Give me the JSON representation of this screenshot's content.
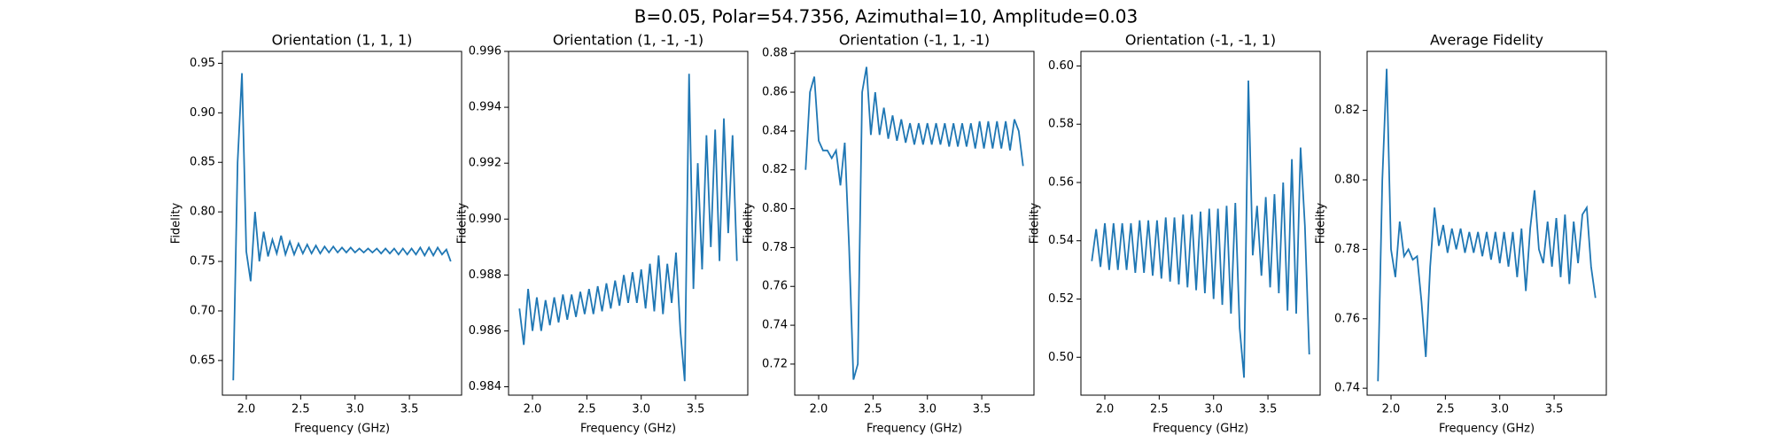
{
  "title": "B=0.05, Polar=54.7356, Azimuthal=10, Amplitude=0.03",
  "chart_data": [
    {
      "type": "line",
      "title": "Orientation (1, 1, 1)",
      "x_label": "Frequency (GHz)",
      "y_label": "Fidelity",
      "x": [
        1.88,
        1.92,
        1.96,
        2.0,
        2.04,
        2.08,
        2.12,
        2.16,
        2.2,
        2.24,
        2.28,
        2.32,
        2.36,
        2.4,
        2.44,
        2.48,
        2.52,
        2.56,
        2.6,
        2.64,
        2.68,
        2.72,
        2.76,
        2.8,
        2.84,
        2.88,
        2.92,
        2.96,
        3.0,
        3.04,
        3.08,
        3.12,
        3.16,
        3.2,
        3.24,
        3.28,
        3.32,
        3.36,
        3.4,
        3.44,
        3.48,
        3.52,
        3.56,
        3.6,
        3.64,
        3.68,
        3.72,
        3.76,
        3.8,
        3.84,
        3.88
      ],
      "values": [
        0.63,
        0.85,
        0.94,
        0.76,
        0.73,
        0.8,
        0.75,
        0.78,
        0.755,
        0.772,
        0.758,
        0.776,
        0.757,
        0.77,
        0.757,
        0.768,
        0.758,
        0.767,
        0.758,
        0.766,
        0.758,
        0.765,
        0.759,
        0.765,
        0.759,
        0.764,
        0.759,
        0.764,
        0.759,
        0.763,
        0.759,
        0.763,
        0.759,
        0.763,
        0.758,
        0.763,
        0.758,
        0.763,
        0.757,
        0.763,
        0.757,
        0.763,
        0.757,
        0.764,
        0.756,
        0.764,
        0.756,
        0.764,
        0.757,
        0.762,
        0.75
      ],
      "color": "#1f77b4",
      "xlim": [
        1.78,
        3.98
      ],
      "xticks": [
        {
          "value": 2,
          "label": "2.0"
        },
        2.5,
        {
          "value": 3,
          "label": "3.0"
        },
        3.5
      ],
      "ylim": [
        0.615,
        0.962
      ],
      "yticks": [
        0.65,
        {
          "value": 0.7,
          "label": "0.70"
        },
        0.75,
        {
          "value": 0.8,
          "label": "0.80"
        },
        0.85,
        {
          "value": 0.9,
          "label": "0.90"
        },
        0.95
      ]
    },
    {
      "type": "line",
      "title": "Orientation (1, -1, -1)",
      "x_label": "Frequency (GHz)",
      "y_label": "Fidelity",
      "x": [
        1.88,
        1.92,
        1.96,
        2.0,
        2.04,
        2.08,
        2.12,
        2.16,
        2.2,
        2.24,
        2.28,
        2.32,
        2.36,
        2.4,
        2.44,
        2.48,
        2.52,
        2.56,
        2.6,
        2.64,
        2.68,
        2.72,
        2.76,
        2.8,
        2.84,
        2.88,
        2.92,
        2.96,
        3.0,
        3.04,
        3.08,
        3.12,
        3.16,
        3.2,
        3.24,
        3.28,
        3.32,
        3.36,
        3.4,
        3.44,
        3.48,
        3.52,
        3.56,
        3.6,
        3.64,
        3.68,
        3.72,
        3.76,
        3.8,
        3.84,
        3.88
      ],
      "values": [
        0.9868,
        0.9855,
        0.9875,
        0.986,
        0.9872,
        0.986,
        0.9871,
        0.9862,
        0.9872,
        0.9863,
        0.9873,
        0.9864,
        0.9873,
        0.9865,
        0.9874,
        0.9866,
        0.9875,
        0.9866,
        0.9876,
        0.9867,
        0.9877,
        0.9868,
        0.9878,
        0.9869,
        0.988,
        0.987,
        0.9881,
        0.987,
        0.9882,
        0.9868,
        0.9884,
        0.9867,
        0.9887,
        0.9866,
        0.9884,
        0.987,
        0.9888,
        0.986,
        0.9842,
        0.9952,
        0.9875,
        0.992,
        0.9882,
        0.993,
        0.989,
        0.9932,
        0.9885,
        0.9936,
        0.9895,
        0.993,
        0.9885
      ],
      "color": "#1f77b4",
      "xlim": [
        1.78,
        3.98
      ],
      "xticks": [
        {
          "value": 2,
          "label": "2.0"
        },
        2.5,
        {
          "value": 3,
          "label": "3.0"
        },
        3.5
      ],
      "ylim": [
        0.9837,
        0.996
      ],
      "yticks": [
        0.984,
        0.986,
        0.988,
        {
          "value": 0.99,
          "label": "0.990"
        },
        0.992,
        0.994,
        0.996
      ]
    },
    {
      "type": "line",
      "title": "Orientation (-1, 1, -1)",
      "x_label": "Frequency (GHz)",
      "y_label": "Fidelity",
      "x": [
        1.88,
        1.92,
        1.96,
        2.0,
        2.04,
        2.08,
        2.12,
        2.16,
        2.2,
        2.24,
        2.28,
        2.32,
        2.36,
        2.4,
        2.44,
        2.48,
        2.52,
        2.56,
        2.6,
        2.64,
        2.68,
        2.72,
        2.76,
        2.8,
        2.84,
        2.88,
        2.92,
        2.96,
        3.0,
        3.04,
        3.08,
        3.12,
        3.16,
        3.2,
        3.24,
        3.28,
        3.32,
        3.36,
        3.4,
        3.44,
        3.48,
        3.52,
        3.56,
        3.6,
        3.64,
        3.68,
        3.72,
        3.76,
        3.8,
        3.84,
        3.88
      ],
      "values": [
        0.82,
        0.86,
        0.868,
        0.835,
        0.83,
        0.83,
        0.826,
        0.83,
        0.812,
        0.834,
        0.78,
        0.712,
        0.72,
        0.86,
        0.873,
        0.838,
        0.86,
        0.838,
        0.852,
        0.836,
        0.848,
        0.835,
        0.846,
        0.834,
        0.844,
        0.833,
        0.844,
        0.833,
        0.844,
        0.833,
        0.844,
        0.833,
        0.844,
        0.832,
        0.844,
        0.832,
        0.844,
        0.832,
        0.844,
        0.831,
        0.845,
        0.831,
        0.845,
        0.831,
        0.845,
        0.831,
        0.845,
        0.83,
        0.846,
        0.84,
        0.822
      ],
      "color": "#1f77b4",
      "xlim": [
        1.78,
        3.98
      ],
      "xticks": [
        {
          "value": 2,
          "label": "2.0"
        },
        2.5,
        {
          "value": 3,
          "label": "3.0"
        },
        3.5
      ],
      "ylim": [
        0.704,
        0.881
      ],
      "yticks": [
        0.72,
        0.74,
        0.76,
        0.78,
        {
          "value": 0.8,
          "label": "0.80"
        },
        0.82,
        0.84,
        0.86,
        0.88
      ]
    },
    {
      "type": "line",
      "title": "Orientation (-1, -1, 1)",
      "x_label": "Frequency (GHz)",
      "y_label": "Fidelity",
      "x": [
        1.88,
        1.92,
        1.96,
        2.0,
        2.04,
        2.08,
        2.12,
        2.16,
        2.2,
        2.24,
        2.28,
        2.32,
        2.36,
        2.4,
        2.44,
        2.48,
        2.52,
        2.56,
        2.6,
        2.64,
        2.68,
        2.72,
        2.76,
        2.8,
        2.84,
        2.88,
        2.92,
        2.96,
        3.0,
        3.04,
        3.08,
        3.12,
        3.16,
        3.2,
        3.24,
        3.28,
        3.32,
        3.36,
        3.4,
        3.44,
        3.48,
        3.52,
        3.56,
        3.6,
        3.64,
        3.68,
        3.72,
        3.76,
        3.8,
        3.84,
        3.88
      ],
      "values": [
        0.533,
        0.544,
        0.531,
        0.546,
        0.53,
        0.546,
        0.53,
        0.546,
        0.53,
        0.546,
        0.529,
        0.547,
        0.529,
        0.547,
        0.528,
        0.547,
        0.527,
        0.548,
        0.526,
        0.548,
        0.525,
        0.549,
        0.524,
        0.549,
        0.523,
        0.55,
        0.522,
        0.551,
        0.52,
        0.551,
        0.518,
        0.552,
        0.515,
        0.553,
        0.51,
        0.493,
        0.595,
        0.535,
        0.552,
        0.528,
        0.555,
        0.524,
        0.556,
        0.522,
        0.56,
        0.516,
        0.568,
        0.515,
        0.572,
        0.545,
        0.501
      ],
      "color": "#1f77b4",
      "xlim": [
        1.78,
        3.98
      ],
      "xticks": [
        {
          "value": 2,
          "label": "2.0"
        },
        2.5,
        {
          "value": 3,
          "label": "3.0"
        },
        3.5
      ],
      "ylim": [
        0.487,
        0.605
      ],
      "yticks": [
        {
          "value": 0.5,
          "label": "0.50"
        },
        0.52,
        0.54,
        0.56,
        0.58,
        {
          "value": 0.6,
          "label": "0.60"
        }
      ]
    },
    {
      "type": "line",
      "title": "Average Fidelity",
      "x_label": "Frequency (GHz)",
      "y_label": "Fidelity",
      "x": [
        1.88,
        1.92,
        1.96,
        2.0,
        2.04,
        2.08,
        2.12,
        2.16,
        2.2,
        2.24,
        2.28,
        2.32,
        2.36,
        2.4,
        2.44,
        2.48,
        2.52,
        2.56,
        2.6,
        2.64,
        2.68,
        2.72,
        2.76,
        2.8,
        2.84,
        2.88,
        2.92,
        2.96,
        3.0,
        3.04,
        3.08,
        3.12,
        3.16,
        3.2,
        3.24,
        3.28,
        3.32,
        3.36,
        3.4,
        3.44,
        3.48,
        3.52,
        3.56,
        3.6,
        3.64,
        3.68,
        3.72,
        3.76,
        3.8,
        3.84,
        3.88
      ],
      "values": [
        0.742,
        0.8,
        0.832,
        0.78,
        0.772,
        0.788,
        0.778,
        0.78,
        0.777,
        0.778,
        0.765,
        0.749,
        0.775,
        0.792,
        0.781,
        0.787,
        0.779,
        0.786,
        0.78,
        0.786,
        0.779,
        0.785,
        0.779,
        0.785,
        0.778,
        0.785,
        0.777,
        0.785,
        0.776,
        0.785,
        0.775,
        0.785,
        0.772,
        0.786,
        0.768,
        0.786,
        0.797,
        0.78,
        0.776,
        0.788,
        0.775,
        0.789,
        0.772,
        0.79,
        0.77,
        0.788,
        0.776,
        0.79,
        0.792,
        0.775,
        0.766
      ],
      "color": "#1f77b4",
      "xlim": [
        1.78,
        3.98
      ],
      "xticks": [
        {
          "value": 2,
          "label": "2.0"
        },
        2.5,
        {
          "value": 3,
          "label": "3.0"
        },
        3.5
      ],
      "ylim": [
        0.738,
        0.837
      ],
      "yticks": [
        0.74,
        0.76,
        0.78,
        {
          "value": 0.8,
          "label": "0.80"
        },
        0.82
      ]
    }
  ]
}
